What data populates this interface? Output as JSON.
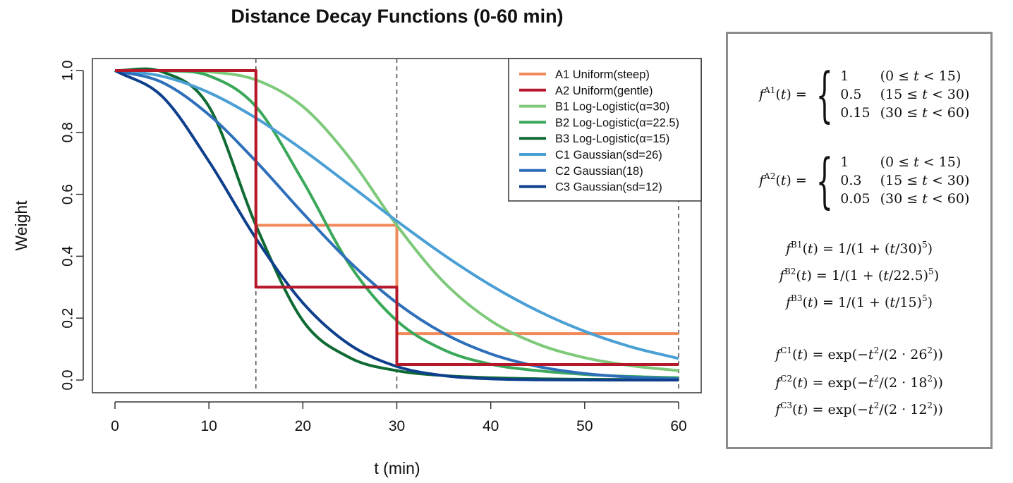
{
  "chart_data": {
    "type": "line",
    "title": "Distance Decay Functions (0-60 min)",
    "xlabel": "t (min)",
    "ylabel": "Weight",
    "xlim": [
      0,
      60
    ],
    "ylim": [
      0,
      1
    ],
    "xticks": [
      "0",
      "10",
      "20",
      "30",
      "40",
      "50",
      "60"
    ],
    "yticks": [
      "0.0",
      "0.2",
      "0.4",
      "0.6",
      "0.8",
      "1.0"
    ],
    "grid": false,
    "legend_position": "top-right",
    "vlines": [
      15,
      30,
      60
    ],
    "series": [
      {
        "name": "A1 Uniform(steep)",
        "color": "#f08a5a",
        "x": [
          0,
          15,
          15,
          30,
          30,
          60
        ],
        "y": [
          1,
          1,
          0.5,
          0.5,
          0.15,
          0.15
        ]
      },
      {
        "name": "A2 Uniform(gentle)",
        "color": "#b5172b",
        "x": [
          0,
          15,
          15,
          30,
          30,
          60
        ],
        "y": [
          1,
          1,
          0.3,
          0.3,
          0.05,
          0.05
        ]
      },
      {
        "name": "B1 Log-Logistic(α=30)",
        "color": "#7ec97a",
        "x": [
          0,
          5,
          10,
          15,
          20,
          25,
          30,
          35,
          40,
          45,
          50,
          55,
          60
        ],
        "y": [
          1.0,
          0.9999,
          0.9959,
          0.9697,
          0.8837,
          0.7168,
          0.5,
          0.3164,
          0.1918,
          0.1164,
          0.0722,
          0.0462,
          0.0303
        ]
      },
      {
        "name": "B2 Log-Logistic(α=22.5)",
        "color": "#3aa85a",
        "x": [
          0,
          5,
          10,
          15,
          20,
          25,
          30,
          35,
          40,
          45,
          50,
          55,
          60
        ],
        "y": [
          1.0,
          0.9995,
          0.983,
          0.8837,
          0.6429,
          0.3714,
          0.1918,
          0.0975,
          0.0512,
          0.0303,
          0.0182,
          0.0113,
          0.0073
        ]
      },
      {
        "name": "B3 Log-Logistic(α=15)",
        "color": "#0f6b33",
        "x": [
          0,
          5,
          10,
          15,
          20,
          25,
          30,
          35,
          40,
          45,
          50,
          55,
          60
        ],
        "y": [
          1.0,
          0.9959,
          0.8837,
          0.5,
          0.1918,
          0.0722,
          0.0303,
          0.0144,
          0.0075,
          0.0041,
          0.0024,
          0.0015,
          0.001
        ]
      },
      {
        "name": "C1 Gaussian(sd=26)",
        "color": "#4a9fd4",
        "x": [
          0,
          5,
          10,
          15,
          20,
          25,
          30,
          35,
          40,
          45,
          50,
          55,
          60
        ],
        "y": [
          1.0,
          0.9817,
          0.9288,
          0.8466,
          0.7437,
          0.6297,
          0.5139,
          0.4043,
          0.3064,
          0.2237,
          0.1574,
          0.1067,
          0.0697
        ]
      },
      {
        "name": "C2 Gaussian(18)",
        "color": "#2e6fba",
        "x": [
          0,
          5,
          10,
          15,
          20,
          25,
          30,
          35,
          40,
          45,
          50,
          55,
          60
        ],
        "y": [
          1.0,
          0.9621,
          0.857,
          0.7068,
          0.5394,
          0.3811,
          0.2494,
          0.1509,
          0.0846,
          0.0439,
          0.0211,
          0.0094,
          0.0039
        ]
      },
      {
        "name": "C3 Gaussian(sd=12)",
        "color": "#0d3f8c",
        "x": [
          0,
          5,
          10,
          15,
          20,
          25,
          30,
          35,
          40,
          45,
          50,
          55,
          60
        ],
        "y": [
          1.0,
          0.917,
          0.7066,
          0.4578,
          0.2494,
          0.1141,
          0.0439,
          0.0142,
          0.0039,
          0.0009,
          0.0002,
          0.0,
          0.0
        ]
      }
    ]
  }
}
